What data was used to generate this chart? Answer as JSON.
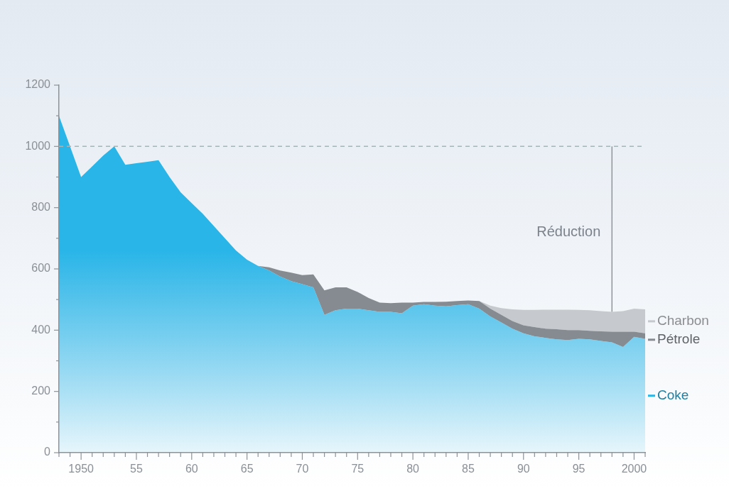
{
  "chart_data": {
    "type": "area",
    "stacked": true,
    "legend": "right",
    "x": [
      1948,
      1949,
      1950,
      1951,
      1952,
      1953,
      1954,
      1955,
      1956,
      1957,
      1958,
      1959,
      1960,
      1961,
      1962,
      1963,
      1964,
      1965,
      1966,
      1967,
      1968,
      1969,
      1970,
      1971,
      1972,
      1973,
      1974,
      1975,
      1976,
      1977,
      1978,
      1979,
      1980,
      1981,
      1982,
      1983,
      1984,
      1985,
      1986,
      1987,
      1988,
      1989,
      1990,
      1991,
      1992,
      1993,
      1994,
      1995,
      1996,
      1997,
      1998,
      1999,
      2000,
      2001
    ],
    "series": [
      {
        "name": "Coke",
        "color": "#29b5e8",
        "values": [
          1100,
          1000,
          900,
          935,
          970,
          1000,
          940,
          945,
          950,
          955,
          900,
          850,
          815,
          780,
          740,
          700,
          660,
          630,
          610,
          595,
          575,
          560,
          550,
          540,
          450,
          465,
          470,
          470,
          465,
          460,
          460,
          455,
          480,
          485,
          480,
          478,
          482,
          485,
          470,
          445,
          425,
          405,
          390,
          380,
          375,
          370,
          368,
          372,
          370,
          365,
          360,
          345,
          378,
          372
        ]
      },
      {
        "name": "Pétrole",
        "color": "#868b92",
        "values": [
          0,
          0,
          0,
          0,
          0,
          0,
          0,
          0,
          0,
          0,
          0,
          0,
          0,
          0,
          0,
          0,
          0,
          0,
          0,
          10,
          20,
          28,
          30,
          42,
          80,
          75,
          70,
          55,
          40,
          30,
          28,
          35,
          10,
          7,
          12,
          15,
          13,
          12,
          25,
          25,
          25,
          25,
          26,
          30,
          30,
          33,
          32,
          28,
          28,
          31,
          35,
          50,
          17,
          18
        ]
      },
      {
        "name": "Charbon",
        "color": "#c6c9cd",
        "values": [
          0,
          0,
          0,
          0,
          0,
          0,
          0,
          0,
          0,
          0,
          0,
          0,
          0,
          0,
          0,
          0,
          0,
          0,
          0,
          0,
          0,
          0,
          0,
          0,
          0,
          0,
          0,
          0,
          0,
          0,
          0,
          0,
          0,
          0,
          0,
          0,
          0,
          0,
          0,
          10,
          22,
          38,
          50,
          56,
          62,
          64,
          67,
          66,
          67,
          66,
          65,
          67,
          75,
          78
        ]
      }
    ],
    "xlim": [
      1948,
      2001
    ],
    "xticks": [
      {
        "value": 1948,
        "label": null
      },
      {
        "value": 1949,
        "label": null
      },
      1950,
      {
        "value": 1951,
        "label": null
      },
      {
        "value": 1952,
        "label": null
      },
      {
        "value": 1953,
        "label": null
      },
      {
        "value": 1954,
        "label": null
      },
      {
        "value": 1955,
        "label": "55"
      },
      {
        "value": 1956,
        "label": null
      },
      {
        "value": 1957,
        "label": null
      },
      {
        "value": 1958,
        "label": null
      },
      {
        "value": 1959,
        "label": null
      },
      {
        "value": 1960,
        "label": "60"
      },
      {
        "value": 1961,
        "label": null
      },
      {
        "value": 1962,
        "label": null
      },
      {
        "value": 1963,
        "label": null
      },
      {
        "value": 1964,
        "label": null
      },
      {
        "value": 1965,
        "label": "65"
      },
      {
        "value": 1966,
        "label": null
      },
      {
        "value": 1967,
        "label": null
      },
      {
        "value": 1968,
        "label": null
      },
      {
        "value": 1969,
        "label": null
      },
      {
        "value": 1970,
        "label": "70"
      },
      {
        "value": 1971,
        "label": null
      },
      {
        "value": 1972,
        "label": null
      },
      {
        "value": 1973,
        "label": null
      },
      {
        "value": 1974,
        "label": null
      },
      {
        "value": 1975,
        "label": "75"
      },
      {
        "value": 1976,
        "label": null
      },
      {
        "value": 1977,
        "label": null
      },
      {
        "value": 1978,
        "label": null
      },
      {
        "value": 1979,
        "label": null
      },
      {
        "value": 1980,
        "label": "80"
      },
      {
        "value": 1981,
        "label": null
      },
      {
        "value": 1982,
        "label": null
      },
      {
        "value": 1983,
        "label": null
      },
      {
        "value": 1984,
        "label": null
      },
      {
        "value": 1985,
        "label": "85"
      },
      {
        "value": 1986,
        "label": null
      },
      {
        "value": 1987,
        "label": null
      },
      {
        "value": 1988,
        "label": null
      },
      {
        "value": 1989,
        "label": null
      },
      {
        "value": 1990,
        "label": "90"
      },
      {
        "value": 1991,
        "label": null
      },
      {
        "value": 1992,
        "label": null
      },
      {
        "value": 1993,
        "label": null
      },
      {
        "value": 1994,
        "label": null
      },
      {
        "value": 1995,
        "label": "95"
      },
      {
        "value": 1996,
        "label": null
      },
      {
        "value": 1997,
        "label": null
      },
      {
        "value": 1998,
        "label": null
      },
      {
        "value": 1999,
        "label": null
      },
      2000,
      {
        "value": 2001,
        "label": null
      }
    ],
    "ylim": [
      0,
      1200
    ],
    "yticks": [
      0,
      {
        "value": 100,
        "label": null
      },
      200,
      {
        "value": 300,
        "label": null
      },
      400,
      {
        "value": 500,
        "label": null
      },
      600,
      {
        "value": 700,
        "label": null
      },
      800,
      {
        "value": 900,
        "label": null
      },
      1000,
      {
        "value": 1100,
        "label": null
      },
      1200
    ],
    "ref_lines": [
      {
        "axis": "y",
        "value": 1000,
        "color": "#a6b6b8",
        "line_style": "dashed"
      },
      {
        "axis": "x",
        "value": 1998,
        "label": "Réduction",
        "color": "#8f959b"
      }
    ]
  }
}
